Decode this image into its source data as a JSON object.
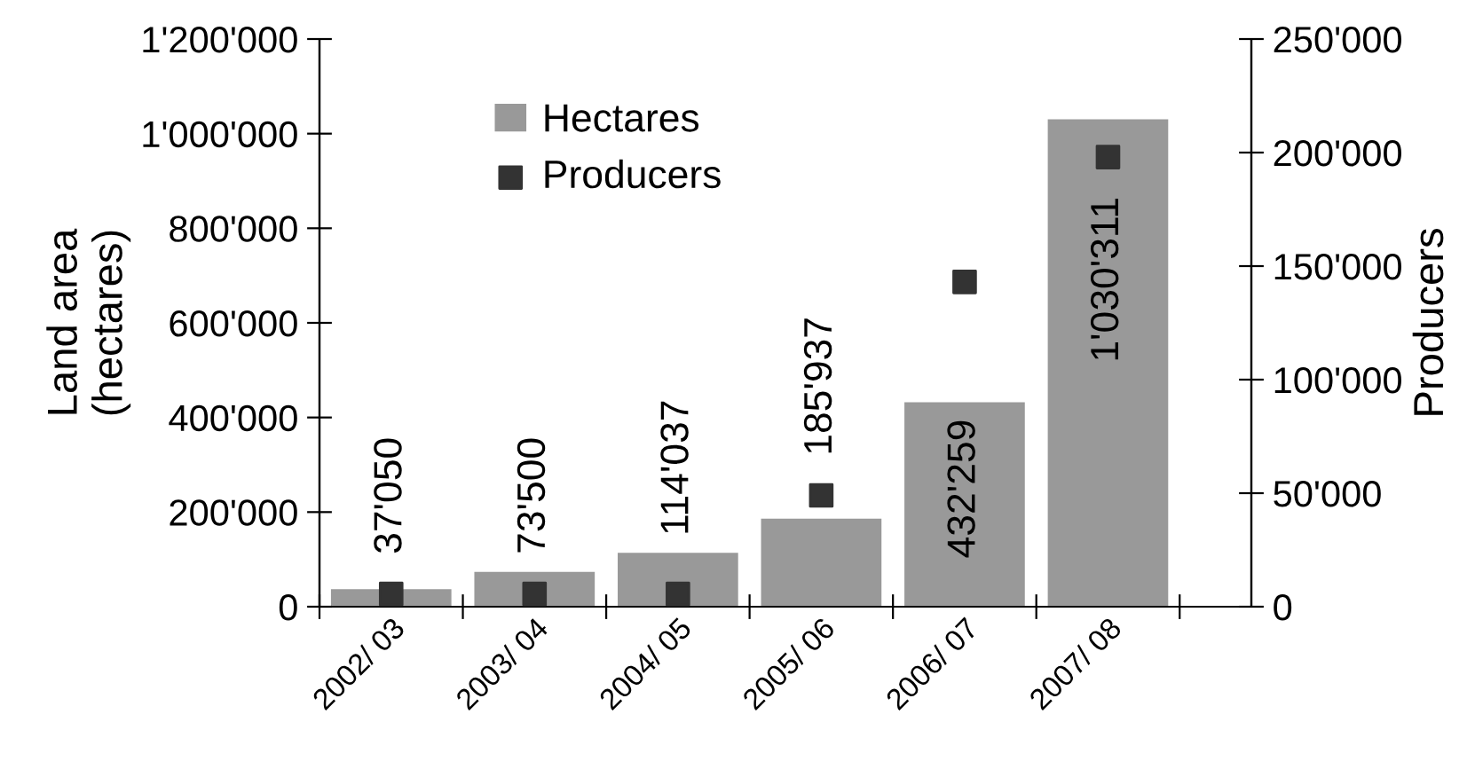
{
  "chart_data": {
    "type": "bar",
    "ylabel": "Land area\n(hectares)",
    "y2label": "Producers",
    "categories": [
      "2002/ 03",
      "2003/ 04",
      "2004/ 05",
      "2005/ 06",
      "2006/ 07",
      "2007/ 08"
    ],
    "series": [
      {
        "name": "Hectares",
        "color": "#999999",
        "values": [
          37050,
          73500,
          114037,
          185937,
          432259,
          1030311
        ],
        "value_labels": [
          "37'050",
          "73'500",
          "114'037",
          "185'937",
          "432'259",
          "1'030'311"
        ]
      },
      {
        "name": "Producers",
        "type": "scatter",
        "axis": "y2",
        "marker": "square",
        "color": "#333333",
        "values": [
          5600,
          5600,
          5600,
          49000,
          143000,
          198000
        ]
      }
    ],
    "ylim": [
      0,
      1200000
    ],
    "yticks": [
      0,
      {
        "value": 200000,
        "label": "200'000"
      },
      {
        "value": 400000,
        "label": "400'000"
      },
      {
        "value": 600000,
        "label": "600'000"
      },
      {
        "value": 800000,
        "label": "800'000"
      },
      {
        "value": 1000000,
        "label": "1'000'000"
      },
      {
        "value": 1200000,
        "label": "1'200'000"
      }
    ],
    "y2lim": [
      0,
      250000
    ],
    "y2ticks": [
      0,
      {
        "value": 50000,
        "label": "50'000"
      },
      {
        "value": 100000,
        "label": "100'000"
      },
      {
        "value": 150000,
        "label": "150'000"
      },
      {
        "value": 200000,
        "label": "200'000"
      },
      {
        "value": 250000,
        "label": "250'000"
      }
    ],
    "grid": false,
    "legend": "top left"
  }
}
